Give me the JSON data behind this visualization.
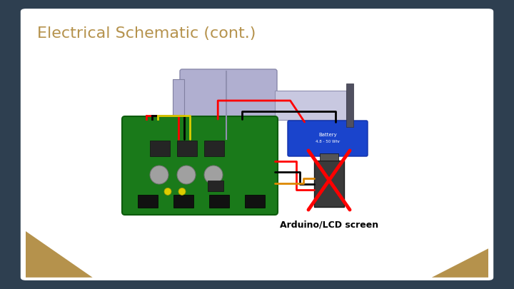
{
  "title": "Electrical Schematic (cont.)",
  "title_color": "#b5924c",
  "title_fontsize": 16,
  "bg_outer": "#2e3f50",
  "bg_inner": "#ffffff",
  "accent_color": "#b5924c",
  "label_text": "Arduino/LCD screen",
  "label_fontsize": 9
}
